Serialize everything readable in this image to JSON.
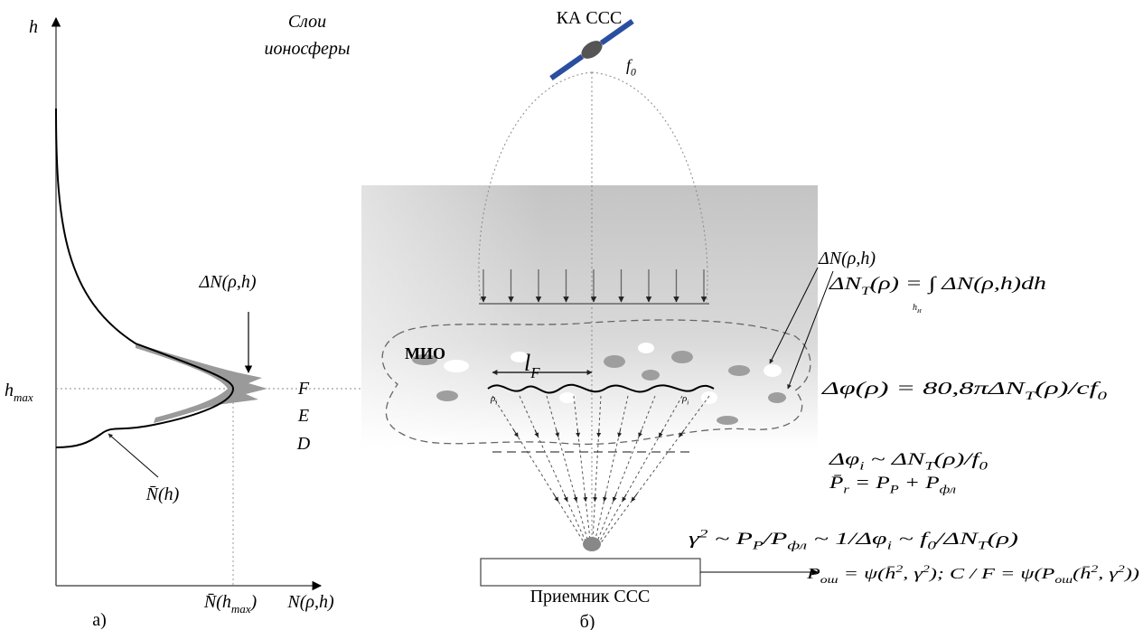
{
  "left": {
    "axis_h": "h",
    "layers_title": [
      "Слои",
      "ионосферы"
    ],
    "delta_n_label": "ΔN(ρ,h)",
    "h_max": [
      {
        "t": "h"
      },
      {
        "sub": "max"
      }
    ],
    "layers": [
      "F",
      "E",
      "D"
    ],
    "n_bar_h": "N̄(h)",
    "n_bar_hmax": [
      {
        "t": "N̄(h"
      },
      {
        "sub": "max"
      },
      {
        "t": ")"
      }
    ],
    "axis_n": "N(ρ,h)",
    "caption": "а)"
  },
  "right": {
    "satellite": "КА ССС",
    "frequency": [
      {
        "t": "f"
      },
      {
        "sub": "0"
      }
    ],
    "mio": "МИО",
    "fresnel": [
      {
        "t": "l"
      },
      {
        "sub": "F"
      }
    ],
    "rho_left": [
      {
        "t": "ρ"
      },
      {
        "sub": "i"
      }
    ],
    "rho_right": [
      {
        "t": "ρ"
      },
      {
        "sub": "i"
      }
    ],
    "receiver": "Приемник ССС",
    "caption": "б)"
  },
  "formulas": {
    "delta_n": [
      {
        "t": "ΔN(ρ,h)"
      }
    ],
    "delta_n_t": [
      {
        "t": "ΔN"
      },
      {
        "sub": "T"
      },
      {
        "t": "(ρ) = ∫ ΔN(ρ,h)dh"
      }
    ],
    "integral_limit": [
      {
        "t": "h"
      },
      {
        "sub": "И"
      }
    ],
    "delta_phi": [
      {
        "t": "Δφ(ρ) = 80,8πΔN"
      },
      {
        "sub": "T"
      },
      {
        "t": "(ρ)/cf"
      },
      {
        "sub": "0"
      }
    ],
    "delta_phi_i": [
      {
        "t": "Δφ"
      },
      {
        "sub": "i"
      },
      {
        "t": " ~ ΔN"
      },
      {
        "sub": "T"
      },
      {
        "t": "(ρ)/f"
      },
      {
        "sub": "0"
      }
    ],
    "p_r": [
      {
        "t": "P̄"
      },
      {
        "sub": "r"
      },
      {
        "t": " = P"
      },
      {
        "sub": "P"
      },
      {
        "t": " + P"
      },
      {
        "sub": "фл"
      }
    ],
    "gamma": [
      {
        "t": "γ"
      },
      {
        "sup": "2"
      },
      {
        "t": " ~ P"
      },
      {
        "sub": "P"
      },
      {
        "t": "/P"
      },
      {
        "sub": "фл"
      },
      {
        "t": " ~ 1/Δφ"
      },
      {
        "sub": "i"
      },
      {
        "t": " ~ f"
      },
      {
        "sub": "0"
      },
      {
        "t": "/ΔN"
      },
      {
        "sub": "T"
      },
      {
        "t": "(ρ)"
      }
    ],
    "p_err": [
      {
        "t": "P"
      },
      {
        "sub": "ош"
      },
      {
        "t": " = ψ(h̄"
      },
      {
        "sup": "2"
      },
      {
        "t": ", γ"
      },
      {
        "sup": "2"
      },
      {
        "t": "); C / F = ψ(P"
      },
      {
        "sub": "ош"
      },
      {
        "t": "(h̄"
      },
      {
        "sup": "2"
      },
      {
        "t": ", γ"
      },
      {
        "sup": "2"
      },
      {
        "t": "))"
      }
    ]
  }
}
